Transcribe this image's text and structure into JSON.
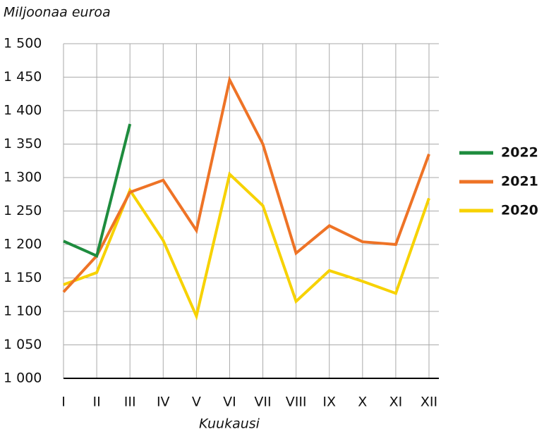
{
  "chart_data": {
    "type": "line",
    "y_label": "Miljoonaa euroa",
    "x_label": "Kuukausi",
    "categories": [
      "I",
      "II",
      "III",
      "IV",
      "V",
      "VI",
      "VII",
      "VIII",
      "IX",
      "X",
      "XI",
      "XII"
    ],
    "series": [
      {
        "name": "2022",
        "color": "#1e8c3e",
        "values": [
          1205,
          1183,
          1380,
          null,
          null,
          null,
          null,
          null,
          null,
          null,
          null,
          null
        ]
      },
      {
        "name": "2021",
        "color": "#ee7326",
        "values": [
          1129,
          1183,
          1278,
          1296,
          1221,
          1446,
          1350,
          1187,
          1228,
          1204,
          1200,
          1335
        ]
      },
      {
        "name": "2020",
        "color": "#f7d200",
        "values": [
          1140,
          1158,
          1281,
          1206,
          1093,
          1305,
          1258,
          1115,
          1161,
          1145,
          1127,
          1269
        ]
      }
    ],
    "ylim": [
      1000,
      1500
    ],
    "yticks": [
      {
        "value": 1000,
        "label": "1 000"
      },
      {
        "value": 1050,
        "label": "1 050"
      },
      {
        "value": 1100,
        "label": "1 100"
      },
      {
        "value": 1150,
        "label": "1 150"
      },
      {
        "value": 1200,
        "label": "1 200"
      },
      {
        "value": 1250,
        "label": "1 250"
      },
      {
        "value": 1300,
        "label": "1 300"
      },
      {
        "value": 1350,
        "label": "1 350"
      },
      {
        "value": 1400,
        "label": "1 400"
      },
      {
        "value": 1450,
        "label": "1 450"
      },
      {
        "value": 1500,
        "label": "1 500"
      }
    ],
    "grid": true,
    "legend": "right"
  }
}
